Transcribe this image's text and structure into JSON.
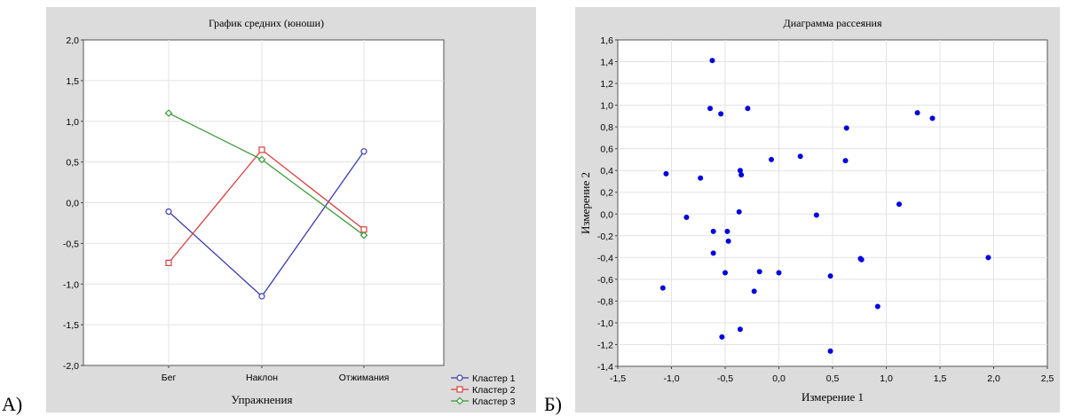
{
  "letters": {
    "a": "А)",
    "b": "Б)"
  },
  "chart_data": [
    {
      "type": "line",
      "title": "График средних (юноши)",
      "xlabel": "Упражнения",
      "ylabel": "",
      "categories": [
        "Бег",
        "Наклон",
        "Отжимания"
      ],
      "ylim": [
        -2.0,
        2.0
      ],
      "yticks": [
        "2,0",
        "1,5",
        "1,0",
        "0,5",
        "0,0",
        "-0,5",
        "-1,0",
        "-1,5",
        "-2,0"
      ],
      "grid": true,
      "legend_position": "bottom-right, outside",
      "series": [
        {
          "name": "Кластер 1",
          "color": "#3b3bb0",
          "marker": "circle",
          "values": [
            -0.11,
            -1.15,
            0.63
          ]
        },
        {
          "name": "Кластер 2",
          "color": "#d94040",
          "marker": "square",
          "values": [
            -0.74,
            0.65,
            -0.33
          ]
        },
        {
          "name": "Кластер 3",
          "color": "#3a9a3a",
          "marker": "diamond",
          "values": [
            1.1,
            0.53,
            -0.4
          ]
        }
      ]
    },
    {
      "type": "scatter",
      "title": "Диаграмма рассеяния",
      "xlabel": "Измерение 1",
      "ylabel": "Измерение 2",
      "xlim": [
        -1.5,
        2.5
      ],
      "ylim": [
        -1.4,
        1.6
      ],
      "xticks": [
        "-1,5",
        "-1,0",
        "-0,5",
        "0,0",
        "0,5",
        "1,0",
        "1,5",
        "2,0",
        "2,5"
      ],
      "yticks": [
        "1,6",
        "1,4",
        "1,2",
        "1,0",
        "0,8",
        "0,6",
        "0,4",
        "0,2",
        "0,0",
        "-0,2",
        "-0,4",
        "-0,6",
        "-0,8",
        "-1,0",
        "-1,2",
        "-1,4"
      ],
      "grid": true,
      "point_color": "#0000dd",
      "points": [
        [
          -0.62,
          1.41
        ],
        [
          -0.64,
          0.97
        ],
        [
          -0.54,
          0.92
        ],
        [
          -0.29,
          0.97
        ],
        [
          -1.05,
          0.37
        ],
        [
          -0.73,
          0.33
        ],
        [
          -0.36,
          0.4
        ],
        [
          -0.35,
          0.36
        ],
        [
          -0.07,
          0.5
        ],
        [
          0.2,
          0.53
        ],
        [
          0.63,
          0.79
        ],
        [
          0.62,
          0.49
        ],
        [
          1.29,
          0.93
        ],
        [
          1.43,
          0.88
        ],
        [
          -0.86,
          -0.03
        ],
        [
          -0.37,
          0.02
        ],
        [
          0.35,
          -0.01
        ],
        [
          1.12,
          0.09
        ],
        [
          -0.61,
          -0.16
        ],
        [
          -0.48,
          -0.16
        ],
        [
          -0.47,
          -0.25
        ],
        [
          -0.61,
          -0.36
        ],
        [
          -0.5,
          -0.54
        ],
        [
          -0.18,
          -0.53
        ],
        [
          0.0,
          -0.54
        ],
        [
          0.76,
          -0.41
        ],
        [
          0.77,
          -0.42
        ],
        [
          1.95,
          -0.4
        ],
        [
          -1.08,
          -0.68
        ],
        [
          -0.23,
          -0.71
        ],
        [
          0.48,
          -0.57
        ],
        [
          0.92,
          -0.85
        ],
        [
          -0.36,
          -1.06
        ],
        [
          -0.53,
          -1.13
        ],
        [
          0.48,
          -1.26
        ]
      ]
    }
  ]
}
